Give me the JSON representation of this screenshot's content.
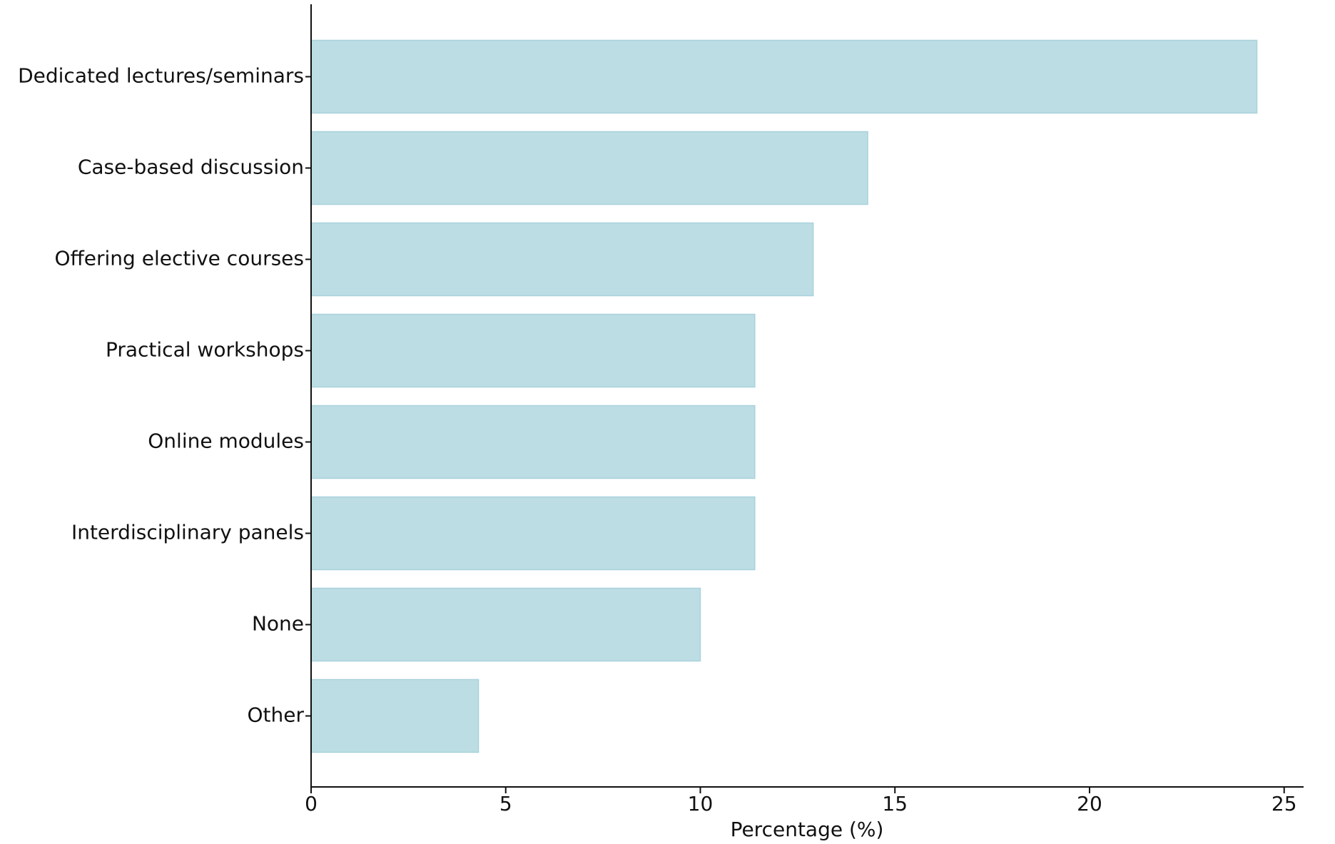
{
  "chart_data": {
    "type": "barh",
    "xlabel": "Percentage (%)",
    "categories": [
      "Dedicated lectures/seminars",
      "Case-based discussion",
      "Offering elective courses",
      "Practical workshops",
      "Online modules",
      "Interdisciplinary panels",
      "None",
      "Other"
    ],
    "values": [
      24.3,
      14.3,
      12.9,
      11.4,
      11.4,
      11.4,
      10.0,
      4.3
    ],
    "color": "#bcdde4",
    "xlim": [
      0,
      25.5
    ],
    "xticks": [
      0,
      5,
      10,
      15,
      20,
      25
    ],
    "grid": false
  }
}
